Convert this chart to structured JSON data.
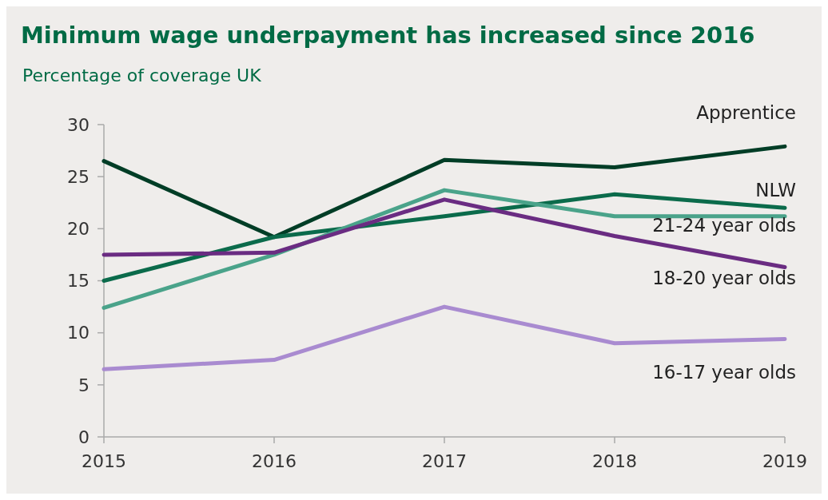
{
  "chart_data": {
    "type": "line",
    "title": "Minimum wage underpayment has increased since 2016",
    "subtitle": "Percentage of coverage UK",
    "x": [
      2015,
      2016,
      2017,
      2018,
      2019
    ],
    "xlim": [
      2015,
      2019
    ],
    "xticks": [
      2015,
      2016,
      2017,
      2018,
      2019
    ],
    "ylim": [
      0,
      30
    ],
    "yticks": [
      0,
      5,
      10,
      15,
      20,
      25,
      30
    ],
    "grid": false,
    "marker": "none",
    "line_style": "solid",
    "series": [
      {
        "name": "Apprentice",
        "color": "#003d26",
        "values": [
          26.5,
          19.2,
          26.6,
          25.9,
          27.9
        ]
      },
      {
        "name": "NLW",
        "color": "#0b6b4b",
        "values": [
          15.0,
          19.2,
          21.2,
          23.3,
          22.0
        ]
      },
      {
        "name": "21-24 year olds",
        "color": "#4aa38a",
        "values": [
          12.4,
          17.5,
          23.7,
          21.2,
          21.2
        ]
      },
      {
        "name": "18-20 year olds",
        "color": "#6a2c82",
        "values": [
          17.5,
          17.7,
          22.8,
          19.3,
          16.3
        ]
      },
      {
        "name": "16-17 year olds",
        "color": "#a98bd0",
        "values": [
          6.5,
          7.4,
          12.5,
          9.0,
          9.4
        ]
      }
    ]
  }
}
